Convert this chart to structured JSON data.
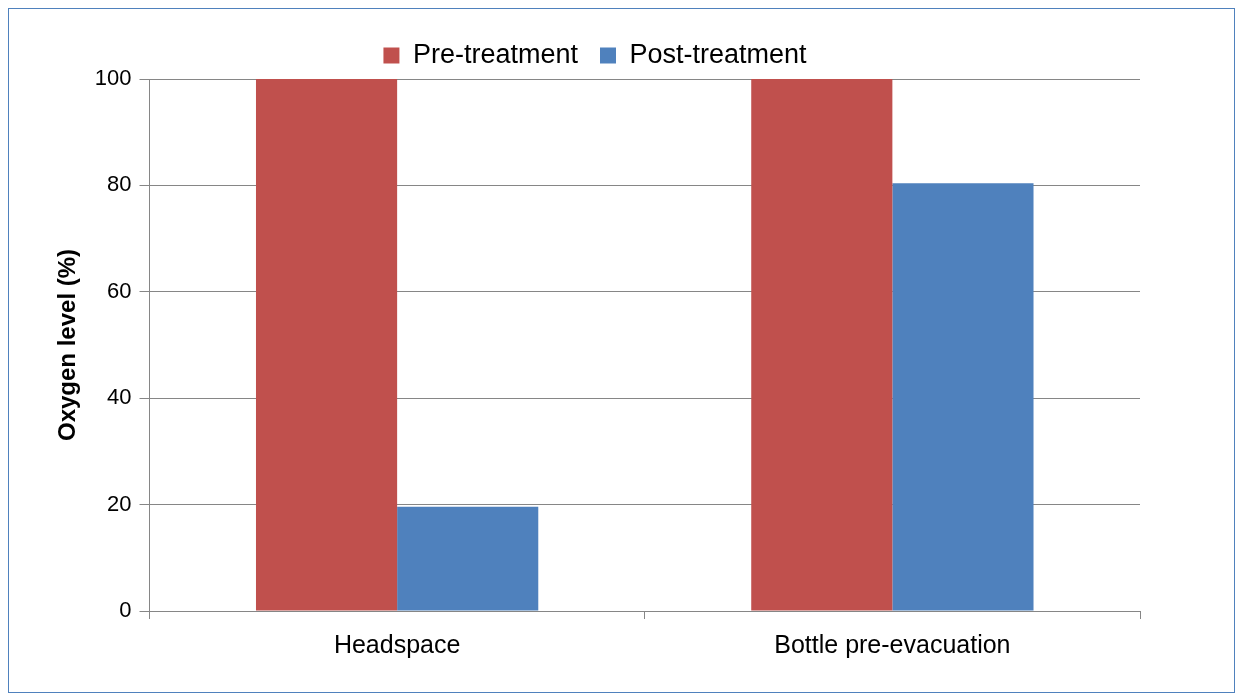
{
  "chart_data": {
    "type": "bar",
    "ylabel": "Oxygen level (%)",
    "categories": [
      "Headspace",
      "Bottle pre-evacuation"
    ],
    "series": [
      {
        "name": "Pre-treatment",
        "color": "#c0504d",
        "values": [
          100,
          100
        ]
      },
      {
        "name": "Post-treatment",
        "color": "#4f81bd",
        "values": [
          19.6,
          80.4
        ]
      }
    ],
    "ylim": [
      0,
      100
    ],
    "yticks": [
      0,
      20,
      40,
      60,
      80,
      100
    ],
    "grid": "y",
    "legend": "top"
  }
}
